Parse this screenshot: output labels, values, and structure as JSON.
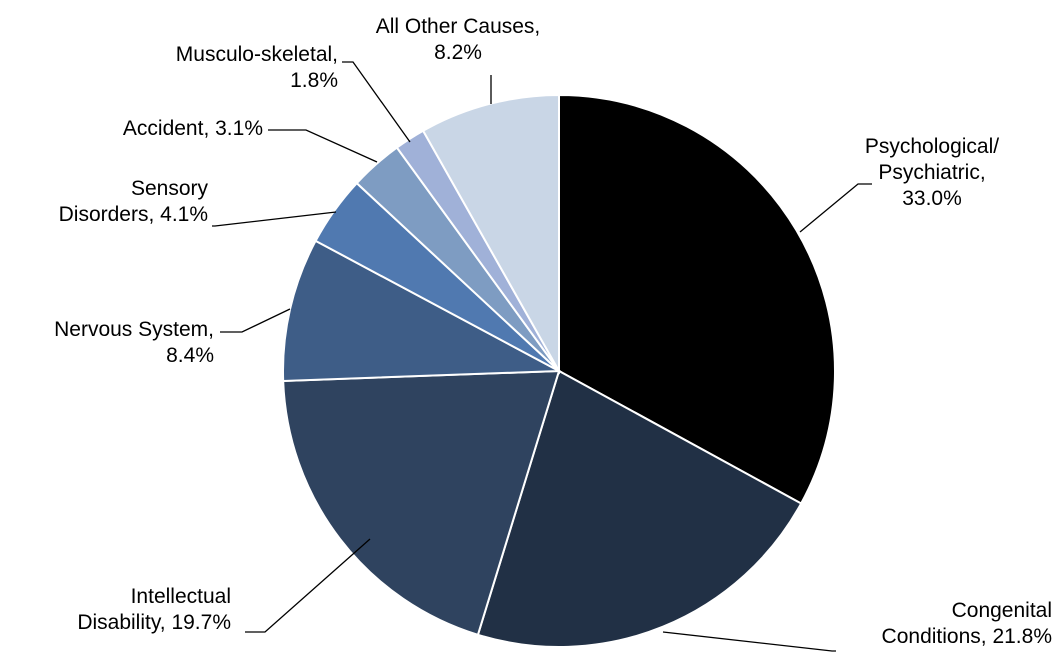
{
  "chart_data": {
    "type": "pie",
    "title": "",
    "start_angle_deg": 0,
    "direction": "clockwise",
    "slices": [
      {
        "label_lines": [
          "Psychological/",
          "Psychiatric,",
          "33.0%"
        ],
        "value": 33.0,
        "color": "#000000"
      },
      {
        "label_lines": [
          "Congenital",
          "Conditions, 21.8%"
        ],
        "value": 21.8,
        "color": "#213045"
      },
      {
        "label_lines": [
          "Intellectual",
          "Disability, 19.7%"
        ],
        "value": 19.7,
        "color": "#2f435f"
      },
      {
        "label_lines": [
          "Nervous System,",
          "8.4%"
        ],
        "value": 8.4,
        "color": "#3e5d87"
      },
      {
        "label_lines": [
          "Sensory",
          "Disorders, 4.1%"
        ],
        "value": 4.1,
        "color": "#5079b0"
      },
      {
        "label_lines": [
          "Accident, 3.1%"
        ],
        "value": 3.1,
        "color": "#7e9cc2"
      },
      {
        "label_lines": [
          "Musculo-skeletal,",
          "1.8%"
        ],
        "value": 1.8,
        "color": "#a0b1d8"
      },
      {
        "label_lines": [
          "All Other Causes,",
          "8.2%"
        ],
        "value": 8.2,
        "color": "#c9d6e6"
      }
    ]
  }
}
